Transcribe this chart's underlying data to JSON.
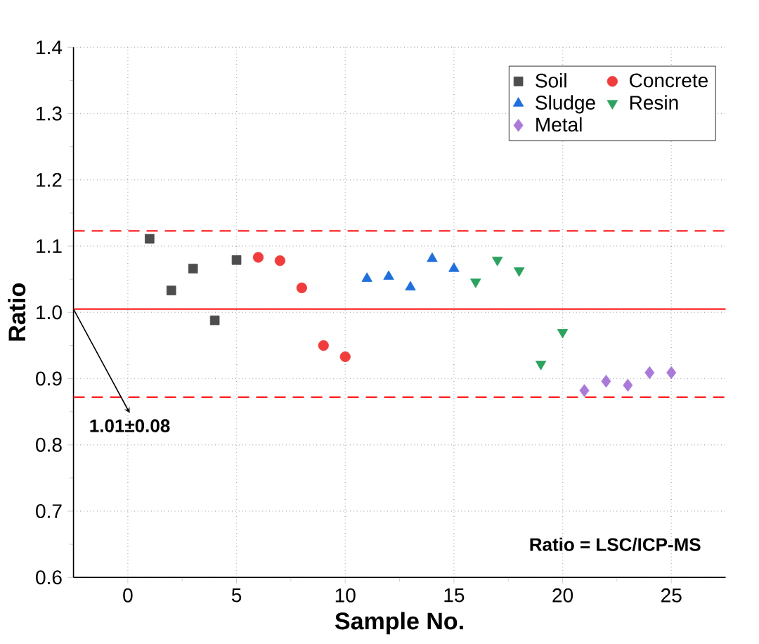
{
  "chart_data": {
    "type": "scatter",
    "xlabel": "Sample No.",
    "ylabel": "Ratio",
    "xlim": [
      -2.5,
      27.5
    ],
    "ylim": [
      0.6,
      1.4
    ],
    "xticks": [
      0,
      5,
      10,
      15,
      20,
      25
    ],
    "yticks": [
      0.6,
      0.7,
      0.8,
      0.9,
      {
        "value": 1.0,
        "label": "1.0"
      },
      1.1,
      1.2,
      1.3,
      1.4
    ],
    "grid": true,
    "legend": "top right",
    "series": [
      {
        "name": "Soil",
        "color": "#4d4d4d",
        "marker": "square",
        "x": [
          1,
          2,
          3,
          4,
          5
        ],
        "values": [
          1.111,
          1.033,
          1.066,
          0.988,
          1.079
        ]
      },
      {
        "name": "Concrete",
        "color": "#f03c3c",
        "marker": "circle",
        "x": [
          6,
          7,
          8,
          9,
          10
        ],
        "values": [
          1.083,
          1.078,
          1.037,
          0.95,
          0.933
        ]
      },
      {
        "name": "Sludge",
        "color": "#1f6fdc",
        "marker": "triangle",
        "x": [
          11,
          12,
          13,
          14,
          15
        ],
        "values": [
          1.051,
          1.054,
          1.038,
          1.081,
          1.066
        ]
      },
      {
        "name": "Resin",
        "color": "#2ca25f",
        "marker": "triangle-down",
        "x": [
          16,
          17,
          18,
          19,
          20
        ],
        "values": [
          1.046,
          1.079,
          1.063,
          0.922,
          0.97
        ]
      },
      {
        "name": "Metal",
        "color": "#a97ad8",
        "marker": "diamond",
        "x": [
          21,
          22,
          23,
          24,
          25
        ],
        "values": [
          0.882,
          0.896,
          0.89,
          0.909,
          0.909
        ]
      }
    ],
    "ref_lines": [
      {
        "axis": "y",
        "value": 1.005,
        "color": "#ff2020",
        "line_style": "solid"
      },
      {
        "axis": "y",
        "value": 1.123,
        "color": "#ff2020",
        "line_style": "dashed"
      },
      {
        "axis": "y",
        "value": 0.872,
        "color": "#ff2020",
        "line_style": "dashed"
      }
    ],
    "annotations": [
      {
        "text": "1.01±0.08",
        "x": -2.5,
        "y": 1.005
      },
      "Ratio = LSC/ICP-MS"
    ]
  }
}
